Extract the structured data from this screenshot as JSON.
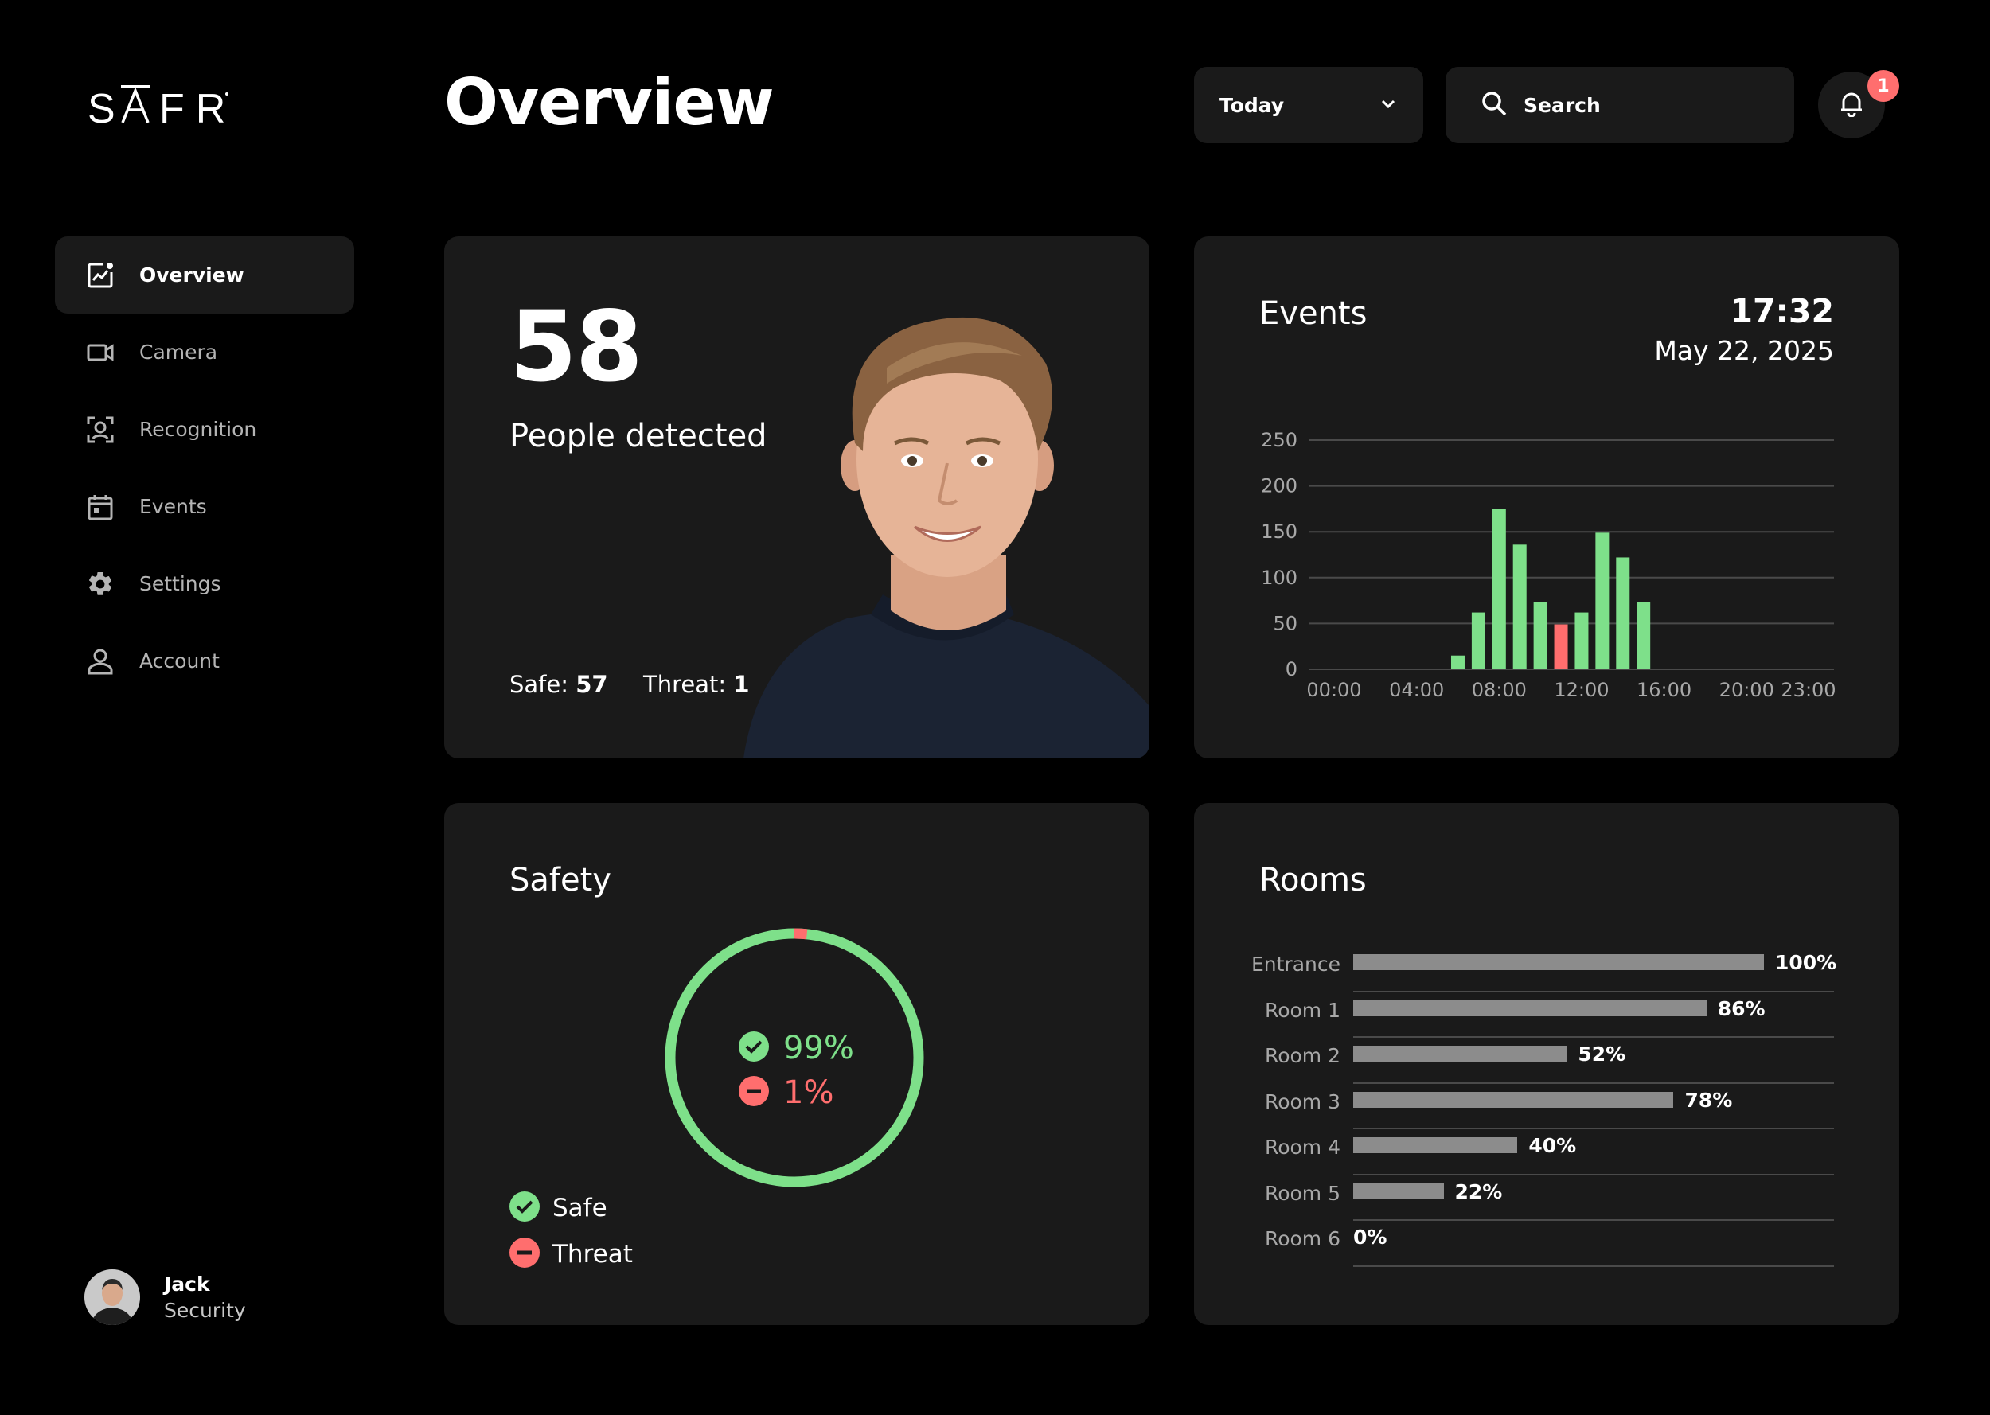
{
  "app": {
    "logo_text": "SAFR"
  },
  "header": {
    "title": "Overview",
    "date_filter": "Today",
    "search_placeholder": "Search",
    "notifications_count": "1"
  },
  "sidebar": {
    "items": [
      {
        "label": "Overview",
        "icon": "chart-line-icon",
        "active": true
      },
      {
        "label": "Camera",
        "icon": "video-camera-icon",
        "active": false
      },
      {
        "label": "Recognition",
        "icon": "face-scan-icon",
        "active": false
      },
      {
        "label": "Events",
        "icon": "calendar-icon",
        "active": false
      },
      {
        "label": "Settings",
        "icon": "gear-icon",
        "active": false
      },
      {
        "label": "Account",
        "icon": "user-icon",
        "active": false
      }
    ]
  },
  "user": {
    "name": "Jack",
    "role": "Security"
  },
  "people": {
    "count": "58",
    "label": "People detected",
    "safe_label": "Safe:",
    "safe_value": "57",
    "threat_label": "Threat:",
    "threat_value": "1"
  },
  "events": {
    "title": "Events",
    "time": "17:32",
    "date": "May 22, 2025"
  },
  "safety": {
    "title": "Safety",
    "safe_pct": "99%",
    "threat_pct": "1%",
    "safe_fraction": 0.99,
    "threat_fraction": 0.01,
    "legend_safe": "Safe",
    "legend_threat": "Threat"
  },
  "rooms": {
    "title": "Rooms",
    "items": [
      {
        "name": "Entrance",
        "value": 100,
        "label": "100%"
      },
      {
        "name": "Room 1",
        "value": 86,
        "label": "86%"
      },
      {
        "name": "Room 2",
        "value": 52,
        "label": "52%"
      },
      {
        "name": "Room 3",
        "value": 78,
        "label": "78%"
      },
      {
        "name": "Room 4",
        "value": 40,
        "label": "40%"
      },
      {
        "name": "Room 5",
        "value": 22,
        "label": "22%"
      },
      {
        "name": "Room 6",
        "value": 0,
        "label": "0%"
      }
    ]
  },
  "colors": {
    "safe": "#7ee08a",
    "threat": "#ff6e6e",
    "card_bg": "#1a1a1a",
    "bar_gray": "#8c8c8c"
  },
  "chart_data": {
    "type": "bar",
    "x_tick_labels": [
      "00:00",
      "04:00",
      "08:00",
      "12:00",
      "16:00",
      "20:00",
      "23:00"
    ],
    "y_ticks": [
      0,
      50,
      100,
      150,
      200,
      250
    ],
    "ylim": [
      0,
      250
    ],
    "xlim_hours": [
      0,
      23
    ],
    "bars": [
      {
        "hour": 6,
        "value": 15,
        "status": "safe"
      },
      {
        "hour": 7,
        "value": 62,
        "status": "safe"
      },
      {
        "hour": 8,
        "value": 175,
        "status": "safe"
      },
      {
        "hour": 9,
        "value": 136,
        "status": "safe"
      },
      {
        "hour": 10,
        "value": 73,
        "status": "safe"
      },
      {
        "hour": 11,
        "value": 49,
        "status": "threat"
      },
      {
        "hour": 12,
        "value": 62,
        "status": "safe"
      },
      {
        "hour": 13,
        "value": 149,
        "status": "safe"
      },
      {
        "hour": 14,
        "value": 122,
        "status": "safe"
      },
      {
        "hour": 15,
        "value": 73,
        "status": "safe"
      }
    ],
    "grid": true,
    "legend": "none"
  }
}
